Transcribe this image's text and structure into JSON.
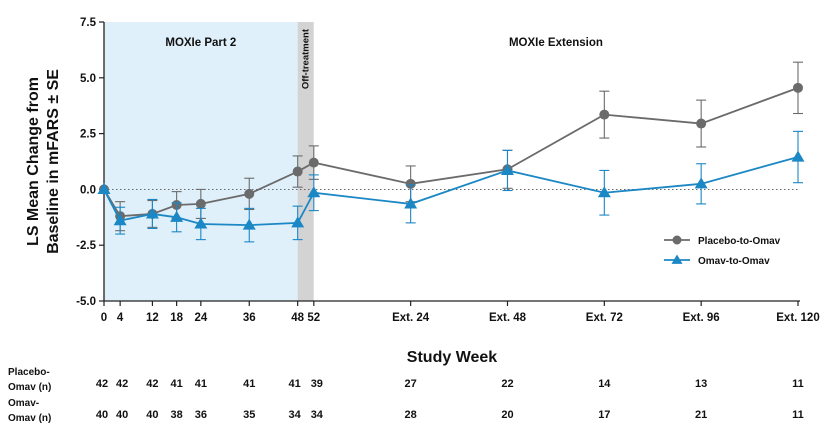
{
  "chart_data": {
    "type": "line",
    "ylabel": [
      "LS Mean Change from",
      "Baseline in mFARS ± SE"
    ],
    "xlabel": "Study Week",
    "ylim": [
      -5.0,
      7.5
    ],
    "yticks": [
      "7.5",
      "5.0",
      "2.5",
      "0.0",
      "-2.5",
      "-5.0"
    ],
    "x_ticks": [
      {
        "pos": 0,
        "label": "0"
      },
      {
        "pos": 4,
        "label": "4"
      },
      {
        "pos": 12,
        "label": "12"
      },
      {
        "pos": 18,
        "label": "18"
      },
      {
        "pos": 24,
        "label": "24"
      },
      {
        "pos": 36,
        "label": "36"
      },
      {
        "pos": 48,
        "label": "48"
      },
      {
        "pos": 52,
        "label": "52"
      },
      {
        "pos": 76,
        "label": "Ext. 24"
      },
      {
        "pos": 100,
        "label": "Ext. 48"
      },
      {
        "pos": 124,
        "label": "Ext. 72"
      },
      {
        "pos": 148,
        "label": "Ext. 96"
      },
      {
        "pos": 172,
        "label": "Ext. 120"
      }
    ],
    "bands": [
      {
        "label": "MOXIe Part 2",
        "from": 0,
        "to": 48,
        "color": "#dff0fb"
      },
      {
        "label": "Off-treatment",
        "from": 48,
        "to": 52,
        "color": "#d3d3d3"
      },
      {
        "label": "MOXIe Extension",
        "from": 52,
        "to": 172,
        "color": "#ffffff"
      }
    ],
    "series": [
      {
        "name": "Placebo-to-Omav",
        "color": "#6b6b6b",
        "marker": "circle",
        "x": [
          0,
          4,
          12,
          18,
          24,
          36,
          48,
          52,
          76,
          100,
          124,
          148,
          172
        ],
        "values": [
          0.0,
          -1.2,
          -1.1,
          -0.7,
          -0.65,
          -0.2,
          0.8,
          1.2,
          0.25,
          0.9,
          3.35,
          2.95,
          4.55
        ],
        "se": [
          0.0,
          0.65,
          0.6,
          0.6,
          0.65,
          0.7,
          0.7,
          0.75,
          0.8,
          0.85,
          1.05,
          1.05,
          1.15
        ]
      },
      {
        "name": "Omav-to-Omav",
        "color": "#1b87c5",
        "marker": "triangle",
        "x": [
          0,
          4,
          12,
          18,
          24,
          36,
          48,
          52,
          76,
          100,
          124,
          148,
          172
        ],
        "values": [
          0.0,
          -1.4,
          -1.1,
          -1.25,
          -1.55,
          -1.6,
          -1.5,
          -0.15,
          -0.65,
          0.85,
          -0.15,
          0.25,
          1.45
        ],
        "se": [
          0.0,
          0.6,
          0.65,
          0.65,
          0.7,
          0.75,
          0.75,
          0.8,
          0.85,
          0.9,
          1.0,
          0.9,
          1.15
        ]
      }
    ],
    "legend": "right",
    "counts": [
      {
        "label": [
          "Placebo-",
          "Omav (n)"
        ],
        "values": [
          "42",
          "42",
          "42",
          "41",
          "41",
          "41",
          "41",
          "39",
          "27",
          "22",
          "14",
          "13",
          "11"
        ]
      },
      {
        "label": [
          "Omav-",
          "Omav (n)"
        ],
        "values": [
          "40",
          "40",
          "40",
          "38",
          "36",
          "35",
          "34",
          "34",
          "28",
          "20",
          "17",
          "21",
          "11"
        ]
      }
    ]
  }
}
